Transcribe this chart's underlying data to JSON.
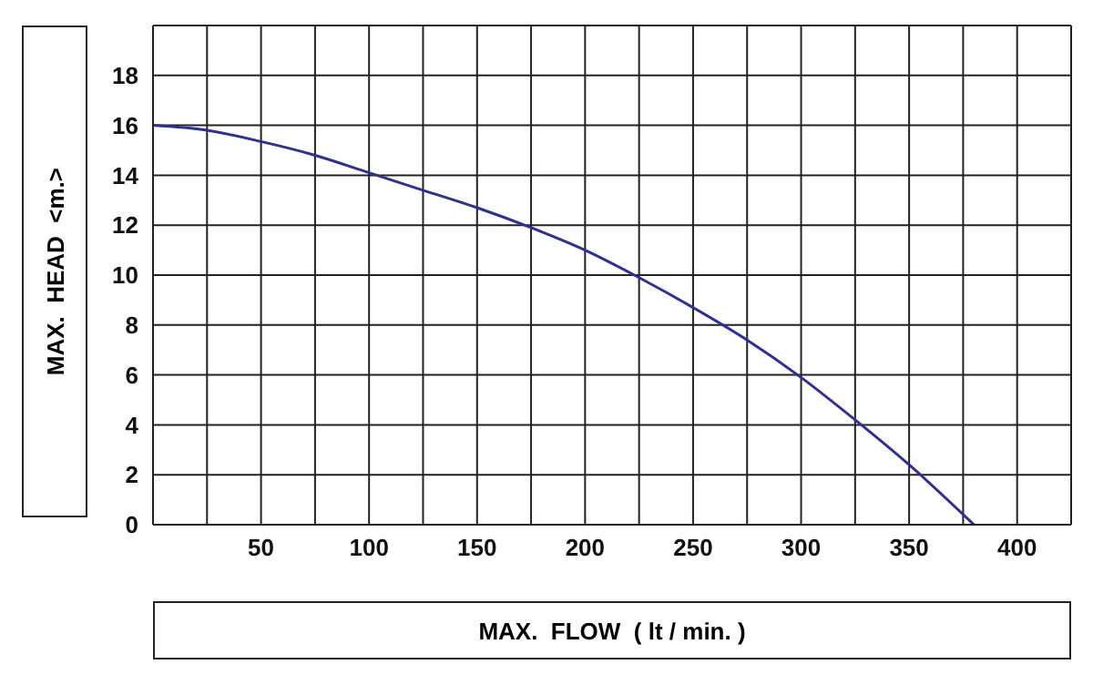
{
  "chart_data": {
    "type": "line",
    "xlabel": "MAX.  FLOW  ( lt / min. )",
    "ylabel": "MAX.  HEAD  <m.>",
    "x": [
      0,
      25,
      50,
      75,
      100,
      125,
      150,
      175,
      200,
      225,
      250,
      275,
      300,
      325,
      350,
      380
    ],
    "series": [
      {
        "color": "#2e3190",
        "values": [
          16,
          15.8,
          15.35,
          14.8,
          14.1,
          13.4,
          12.7,
          11.9,
          11,
          9.9,
          8.7,
          7.4,
          5.9,
          4.2,
          2.4,
          0
        ]
      }
    ],
    "xlim": [
      0,
      425
    ],
    "xticks": [
      {
        "value": 0,
        "label": null
      },
      {
        "value": 25,
        "label": null
      },
      50,
      {
        "value": 75,
        "label": null
      },
      100,
      {
        "value": 125,
        "label": null
      },
      150,
      {
        "value": 175,
        "label": null
      },
      200,
      {
        "value": 225,
        "label": null
      },
      250,
      {
        "value": 275,
        "label": null
      },
      300,
      {
        "value": 325,
        "label": null
      },
      350,
      {
        "value": 375,
        "label": null
      },
      400,
      {
        "value": 425,
        "label": null
      }
    ],
    "ylim": [
      0,
      20
    ],
    "yticks": [
      0,
      2,
      4,
      6,
      8,
      10,
      12,
      14,
      16,
      18,
      {
        "value": 20,
        "label": null
      }
    ],
    "grid": true,
    "legend": false,
    "marker": "none",
    "line_style": "solid"
  }
}
